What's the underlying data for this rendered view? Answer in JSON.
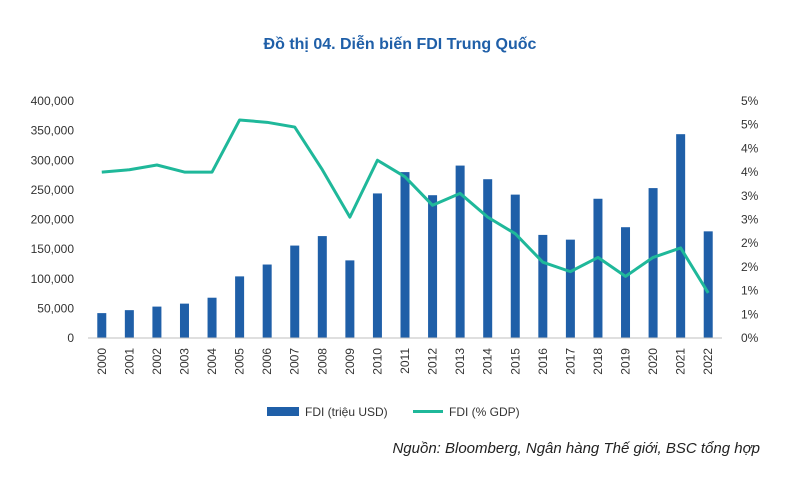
{
  "title": "Đồ thị 04. Diễn biến FDI Trung Quốc",
  "source": "Nguồn: Bloomberg, Ngân hàng Thế giới, BSC tổng hợp",
  "colors": {
    "bar": "#1f5fa8",
    "line": "#1fb89a",
    "title": "#1f5fa8"
  },
  "chart_data": {
    "type": "bar+line",
    "categories": [
      "2000",
      "2001",
      "2002",
      "2003",
      "2004",
      "2005",
      "2006",
      "2007",
      "2008",
      "2009",
      "2010",
      "2011",
      "2012",
      "2013",
      "2014",
      "2015",
      "2016",
      "2017",
      "2018",
      "2019",
      "2020",
      "2021",
      "2022"
    ],
    "series": [
      {
        "name": "FDI (triệu USD)",
        "type": "bar",
        "axis": "left",
        "values": [
          42000,
          47000,
          53000,
          58000,
          68000,
          104000,
          124000,
          156000,
          172000,
          131000,
          244000,
          280000,
          241000,
          291000,
          268000,
          242000,
          174000,
          166000,
          235000,
          187000,
          253000,
          344000,
          180000
        ]
      },
      {
        "name": "FDI (% GDP)",
        "type": "line",
        "axis": "right",
        "values": [
          3.5,
          3.55,
          3.65,
          3.5,
          3.5,
          4.6,
          4.55,
          4.45,
          3.55,
          2.55,
          3.75,
          3.4,
          2.8,
          3.05,
          2.55,
          2.2,
          1.6,
          1.4,
          1.7,
          1.3,
          1.7,
          1.9,
          0.95
        ]
      }
    ],
    "y_left": {
      "ylim": [
        0,
        400000
      ],
      "ticks": [
        "0",
        "50,000",
        "100,000",
        "150,000",
        "200,000",
        "250,000",
        "300,000",
        "350,000",
        "400,000"
      ]
    },
    "y_right": {
      "ylim": [
        0,
        5
      ],
      "ticks": [
        "0%",
        "1%",
        "1%",
        "2%",
        "2%",
        "3%",
        "3%",
        "4%",
        "4%",
        "5%",
        "5%"
      ]
    },
    "legend_position": "bottom",
    "grid": false
  }
}
